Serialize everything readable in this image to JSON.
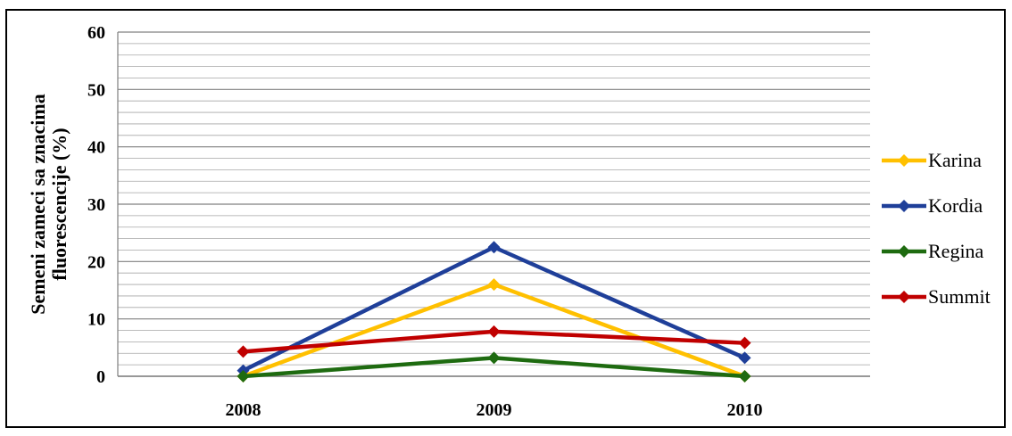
{
  "chart_data": {
    "type": "line",
    "categories": [
      "2008",
      "2009",
      "2010"
    ],
    "ylabel_line1": "Semeni zameci sa znacima",
    "ylabel_line2": "fluorescencije (%)",
    "ylim": [
      0,
      60
    ],
    "yticks": [
      "0",
      "10",
      "20",
      "30",
      "40",
      "50",
      "60"
    ],
    "grid": true,
    "legend_position": "right",
    "series": [
      {
        "name": "Karina",
        "color": "#FFC000",
        "values": [
          0,
          16,
          0
        ]
      },
      {
        "name": "Kordia",
        "color": "#1F3F99",
        "values": [
          1,
          22.5,
          3.2
        ]
      },
      {
        "name": "Regina",
        "color": "#1E6B10",
        "values": [
          0,
          3.2,
          0
        ]
      },
      {
        "name": "Summit",
        "color": "#C00000",
        "values": [
          4.3,
          7.8,
          5.8
        ]
      }
    ]
  }
}
